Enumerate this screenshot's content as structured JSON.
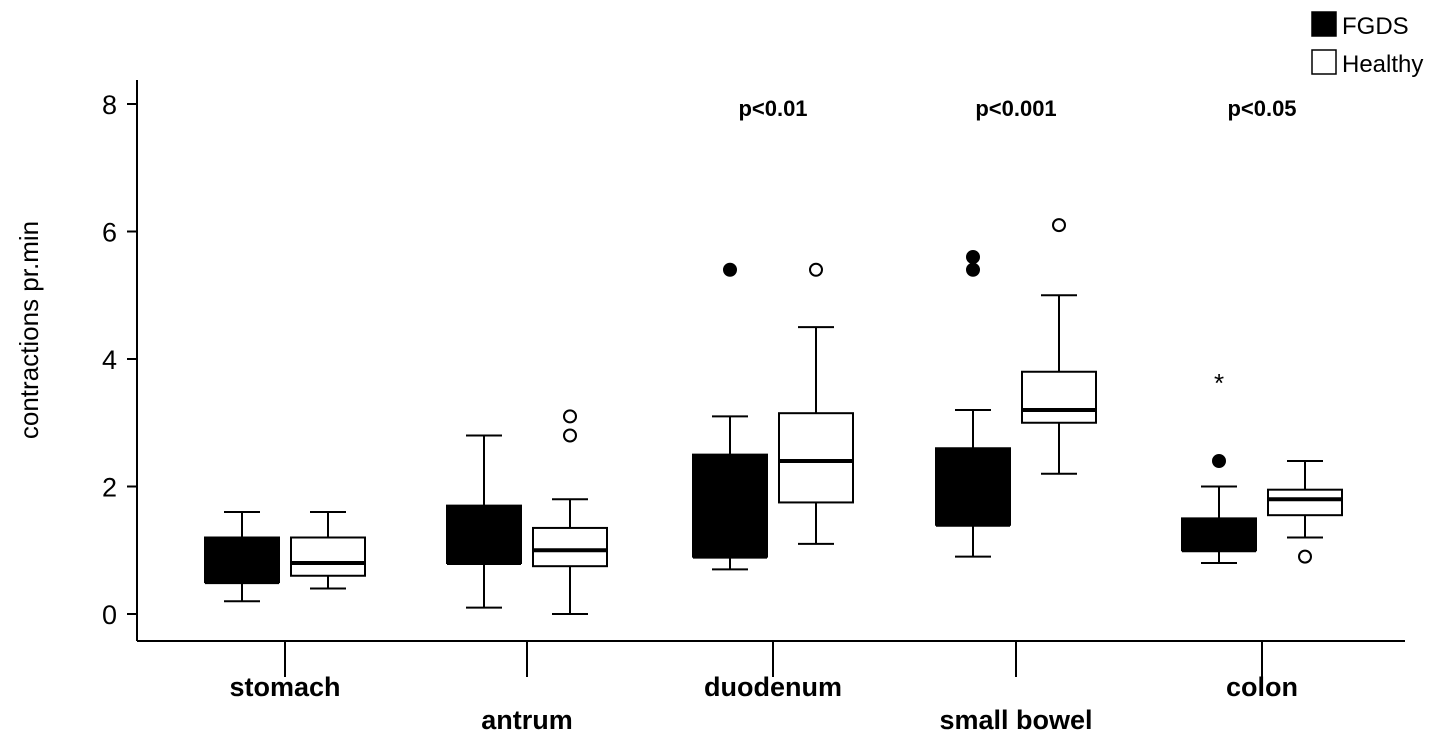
{
  "chart_data": {
    "type": "boxplot",
    "ylabel": "contractions pr.min",
    "xlabel": "",
    "ylim": [
      0,
      8
    ],
    "yticks": [
      0,
      2,
      4,
      6,
      8
    ],
    "legend": {
      "placement": "top-right"
    },
    "categories": [
      "stomach",
      "antrum",
      "duodenum",
      "small bowel",
      "colon"
    ],
    "series": [
      {
        "name": "FGDS",
        "color": "#000000",
        "boxes": [
          {
            "whisker_low": 0.2,
            "q1": 0.5,
            "median": 0.5,
            "q3": 1.2,
            "whisker_high": 1.6,
            "outliers": [],
            "extremes": []
          },
          {
            "whisker_low": 0.1,
            "q1": 0.8,
            "median": 0.8,
            "q3": 1.7,
            "whisker_high": 2.8,
            "outliers": [],
            "extremes": []
          },
          {
            "whisker_low": 0.7,
            "q1": 0.9,
            "median": 0.9,
            "q3": 2.5,
            "whisker_high": 3.1,
            "outliers": [
              5.4
            ],
            "extremes": []
          },
          {
            "whisker_low": 0.9,
            "q1": 1.4,
            "median": 1.4,
            "q3": 2.6,
            "whisker_high": 3.2,
            "outliers": [
              5.4,
              5.6
            ],
            "extremes": []
          },
          {
            "whisker_low": 0.8,
            "q1": 1.0,
            "median": 1.0,
            "q3": 1.5,
            "whisker_high": 2.0,
            "outliers": [
              2.4
            ],
            "extremes": [
              3.7
            ]
          }
        ]
      },
      {
        "name": "Healthy",
        "color": "#ffffff",
        "boxes": [
          {
            "whisker_low": 0.4,
            "q1": 0.6,
            "median": 0.8,
            "q3": 1.2,
            "whisker_high": 1.6,
            "outliers": [],
            "extremes": []
          },
          {
            "whisker_low": 0.0,
            "q1": 0.75,
            "median": 1.0,
            "q3": 1.35,
            "whisker_high": 1.8,
            "outliers": [
              2.8,
              3.1
            ],
            "extremes": []
          },
          {
            "whisker_low": 1.1,
            "q1": 1.75,
            "median": 2.4,
            "q3": 3.15,
            "whisker_high": 4.5,
            "outliers": [
              5.4
            ],
            "extremes": []
          },
          {
            "whisker_low": 2.2,
            "q1": 3.0,
            "median": 3.2,
            "q3": 3.8,
            "whisker_high": 5.0,
            "outliers": [
              6.1
            ],
            "extremes": []
          },
          {
            "whisker_low": 1.2,
            "q1": 1.55,
            "median": 1.8,
            "q3": 1.95,
            "whisker_high": 2.4,
            "outliers": [
              0.9
            ],
            "extremes": []
          }
        ]
      }
    ],
    "annotations": [
      {
        "text": "p<0.01",
        "category": "duodenum",
        "y": 7.95
      },
      {
        "text": "p<0.001",
        "category": "small bowel",
        "y": 7.95
      },
      {
        "text": "p<0.05",
        "category": "colon",
        "y": 7.95
      }
    ],
    "extreme_marker": "*"
  }
}
